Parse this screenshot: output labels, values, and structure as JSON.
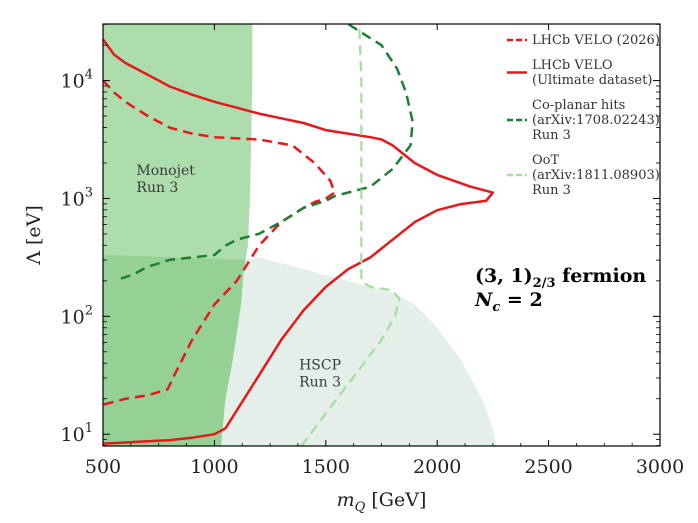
{
  "chart_data": {
    "type": "line",
    "x_label": "m",
    "x_label_sub": "Q",
    "x_label_unit": "[GeV]",
    "y_label": "Λ [eV]",
    "xlim": [
      500,
      3000
    ],
    "ylim_log10": [
      0.9,
      4.48
    ],
    "x_ticks": [
      500,
      1000,
      1500,
      2000,
      2500,
      3000
    ],
    "y_ticks": [
      {
        "exp": 1,
        "label": "10",
        "sup": "1"
      },
      {
        "exp": 2,
        "label": "10",
        "sup": "2"
      },
      {
        "exp": 3,
        "label": "10",
        "sup": "3"
      },
      {
        "exp": 4,
        "label": "10",
        "sup": "4"
      }
    ],
    "regions": [
      {
        "name": "Monojet",
        "label_lines": [
          "Monojet",
          "Run 3"
        ],
        "label_at": [
          650,
          3.2
        ],
        "color": "#9fd69f",
        "opacity": 0.85,
        "points": [
          [
            500,
            0.9
          ],
          [
            1030,
            0.9
          ],
          [
            1050,
            1.3
          ],
          [
            1080,
            1.6
          ],
          [
            1100,
            1.85
          ],
          [
            1120,
            2.1
          ],
          [
            1130,
            2.35
          ],
          [
            1140,
            2.48
          ],
          [
            1150,
            2.6
          ],
          [
            1160,
            3.0
          ],
          [
            1165,
            3.5
          ],
          [
            1170,
            4.0
          ],
          [
            1170,
            4.48
          ],
          [
            500,
            4.48
          ]
        ]
      },
      {
        "name": "Monojet overlap",
        "label_lines": [],
        "color": "#7ec67e",
        "opacity": 0.5,
        "points": [
          [
            500,
            0.9
          ],
          [
            1030,
            0.9
          ],
          [
            1050,
            1.3
          ],
          [
            1080,
            1.6
          ],
          [
            1100,
            1.85
          ],
          [
            1120,
            2.1
          ],
          [
            1130,
            2.35
          ],
          [
            1140,
            2.48
          ],
          [
            500,
            2.52
          ]
        ]
      },
      {
        "name": "HSCP",
        "label_lines": [
          "HSCP",
          "Run 3"
        ],
        "label_at": [
          1380,
          1.55
        ],
        "color": "#dcebe2",
        "opacity": 0.8,
        "points": [
          [
            1030,
            0.9
          ],
          [
            1050,
            1.3
          ],
          [
            1080,
            1.6
          ],
          [
            1100,
            1.85
          ],
          [
            1120,
            2.1
          ],
          [
            1130,
            2.35
          ],
          [
            1140,
            2.48
          ],
          [
            1200,
            2.5
          ],
          [
            1300,
            2.45
          ],
          [
            1400,
            2.4
          ],
          [
            1500,
            2.35
          ],
          [
            1600,
            2.3
          ],
          [
            1700,
            2.25
          ],
          [
            1800,
            2.2
          ],
          [
            1900,
            2.1
          ],
          [
            2000,
            1.9
          ],
          [
            2100,
            1.65
          ],
          [
            2200,
            1.3
          ],
          [
            2250,
            1.05
          ],
          [
            2265,
            0.9
          ]
        ]
      }
    ],
    "series": [
      {
        "name": "LHCb VELO (2026)",
        "legend_lines": [
          "LHCb VELO (2026)"
        ],
        "color": "#e8171b",
        "dash": "10,6",
        "width": 2.5,
        "points": [
          [
            500,
            4.0
          ],
          [
            550,
            3.9
          ],
          [
            600,
            3.82
          ],
          [
            700,
            3.7
          ],
          [
            800,
            3.6
          ],
          [
            900,
            3.55
          ],
          [
            1000,
            3.52
          ],
          [
            1200,
            3.5
          ],
          [
            1350,
            3.45
          ],
          [
            1450,
            3.3
          ],
          [
            1520,
            3.15
          ],
          [
            1540,
            3.05
          ],
          [
            1500,
            3.0
          ],
          [
            1450,
            2.97
          ],
          [
            1400,
            2.92
          ],
          [
            1300,
            2.8
          ],
          [
            1200,
            2.6
          ],
          [
            1100,
            2.3
          ],
          [
            1000,
            2.1
          ],
          [
            900,
            1.8
          ],
          [
            820,
            1.5
          ],
          [
            790,
            1.38
          ],
          [
            700,
            1.33
          ],
          [
            600,
            1.3
          ],
          [
            500,
            1.25
          ]
        ]
      },
      {
        "name": "LHCb VELO (Ultimate dataset)",
        "legend_lines": [
          "LHCb VELO",
          "(Ultimate dataset)"
        ],
        "color": "#e8171b",
        "dash": "",
        "width": 2.5,
        "points": [
          [
            500,
            4.35
          ],
          [
            550,
            4.22
          ],
          [
            600,
            4.15
          ],
          [
            700,
            4.05
          ],
          [
            800,
            3.95
          ],
          [
            900,
            3.88
          ],
          [
            1000,
            3.82
          ],
          [
            1100,
            3.77
          ],
          [
            1200,
            3.72
          ],
          [
            1300,
            3.68
          ],
          [
            1400,
            3.64
          ],
          [
            1500,
            3.58
          ],
          [
            1600,
            3.55
          ],
          [
            1700,
            3.52
          ],
          [
            1750,
            3.5
          ],
          [
            1800,
            3.45
          ],
          [
            1900,
            3.3
          ],
          [
            2000,
            3.2
          ],
          [
            2150,
            3.1
          ],
          [
            2250,
            3.05
          ],
          [
            2220,
            2.98
          ],
          [
            2100,
            2.95
          ],
          [
            2000,
            2.9
          ],
          [
            1900,
            2.8
          ],
          [
            1800,
            2.65
          ],
          [
            1700,
            2.5
          ],
          [
            1600,
            2.4
          ],
          [
            1500,
            2.25
          ],
          [
            1400,
            2.05
          ],
          [
            1300,
            1.8
          ],
          [
            1200,
            1.5
          ],
          [
            1100,
            1.2
          ],
          [
            1050,
            1.05
          ],
          [
            1000,
            1.0
          ],
          [
            900,
            0.97
          ],
          [
            800,
            0.95
          ],
          [
            700,
            0.94
          ],
          [
            600,
            0.93
          ],
          [
            500,
            0.92
          ]
        ]
      },
      {
        "name": "Co-planar hits (arXiv:1708.02243) Run 3",
        "legend_lines": [
          "Co-planar hits",
          "(arXiv:1708.02243)",
          "Run 3"
        ],
        "color": "#1e7f34",
        "dash": "10,6",
        "width": 2.5,
        "points": [
          [
            580,
            2.32
          ],
          [
            630,
            2.35
          ],
          [
            700,
            2.42
          ],
          [
            800,
            2.48
          ],
          [
            900,
            2.5
          ],
          [
            1000,
            2.52
          ],
          [
            1050,
            2.6
          ],
          [
            1100,
            2.65
          ],
          [
            1200,
            2.7
          ],
          [
            1300,
            2.8
          ],
          [
            1400,
            2.92
          ],
          [
            1500,
            2.98
          ],
          [
            1540,
            3.02
          ],
          [
            1700,
            3.1
          ],
          [
            1800,
            3.25
          ],
          [
            1880,
            3.45
          ],
          [
            1890,
            3.65
          ],
          [
            1860,
            3.9
          ],
          [
            1820,
            4.1
          ],
          [
            1750,
            4.3
          ],
          [
            1650,
            4.42
          ],
          [
            1600,
            4.48
          ]
        ]
      },
      {
        "name": "OoT (arXiv:1811.08903) Run 3",
        "legend_lines": [
          "OoT",
          "(arXiv:1811.08903)",
          "Run 3"
        ],
        "color": "#a6dea2",
        "dash": "10,6",
        "width": 2.3,
        "points": [
          [
            1390,
            0.9
          ],
          [
            1450,
            1.05
          ],
          [
            1550,
            1.3
          ],
          [
            1650,
            1.55
          ],
          [
            1750,
            1.8
          ],
          [
            1810,
            2.0
          ],
          [
            1830,
            2.15
          ],
          [
            1800,
            2.22
          ],
          [
            1700,
            2.25
          ],
          [
            1660,
            2.3
          ],
          [
            1660,
            2.5
          ],
          [
            1660,
            3.0
          ],
          [
            1660,
            3.5
          ],
          [
            1660,
            4.0
          ],
          [
            1650,
            4.48
          ]
        ]
      }
    ],
    "annotation": {
      "line1_main": "(3, 1)",
      "line1_sub": "2/3",
      "line1_tail": " fermion",
      "line2_main": "N",
      "line2_sub": "c",
      "line2_tail": " = 2"
    }
  }
}
